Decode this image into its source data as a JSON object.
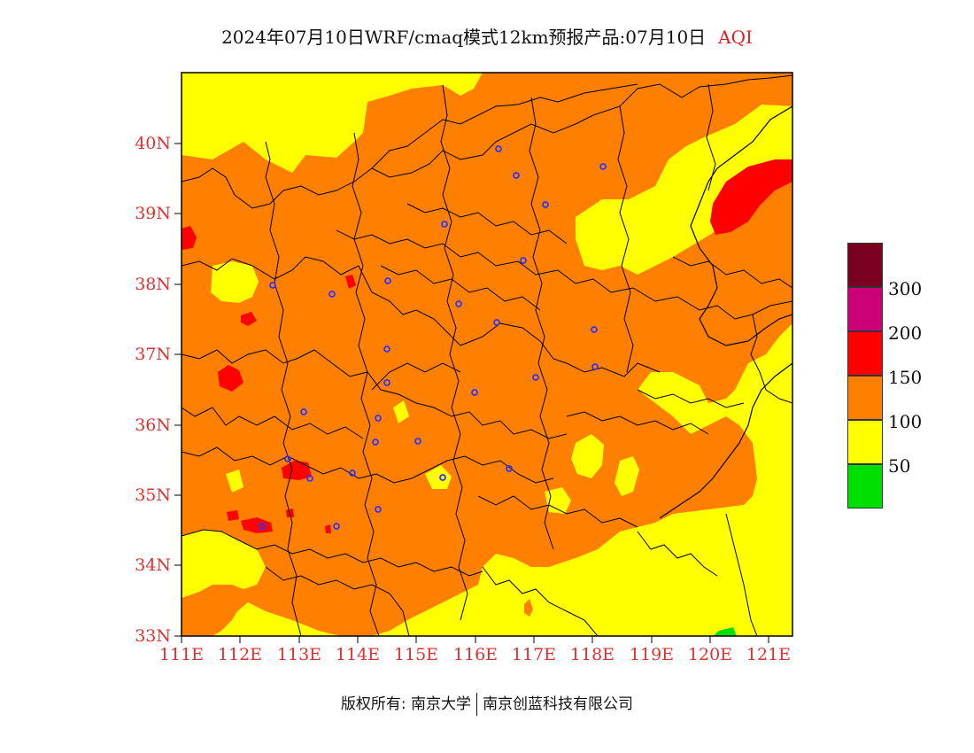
{
  "title": {
    "main": "2024年07月10日WRF/cmaq模式12km预报产品:07月10日",
    "variable": "AQI"
  },
  "map": {
    "lat_labels": [
      "40N",
      "39N",
      "38N",
      "37N",
      "36N",
      "35N",
      "34N",
      "33N"
    ],
    "lon_labels": [
      "111E",
      "112E",
      "113E",
      "114E",
      "115E",
      "116E",
      "117E",
      "118E",
      "119E",
      "120E",
      "121E"
    ],
    "lon_range": [
      111,
      121.4
    ],
    "lat_range": [
      33,
      41
    ],
    "colors": {
      "good": "#00e000",
      "moderate": "#ffff00",
      "usg": "#ff8000",
      "unhealthy": "#ff0000",
      "very_unhealthy": "#cc0077",
      "hazardous": "#7a0020"
    },
    "city_marker_color": "#3333ff"
  },
  "legend": {
    "labels": [
      "300",
      "200",
      "150",
      "100",
      "50"
    ],
    "colors": [
      "#7a0020",
      "#cc0077",
      "#ff0000",
      "#ff8000",
      "#ffff00",
      "#00e000"
    ]
  },
  "footer": {
    "copyright": "版权所有: 南京大学",
    "company": "南京创蓝科技有限公司"
  }
}
